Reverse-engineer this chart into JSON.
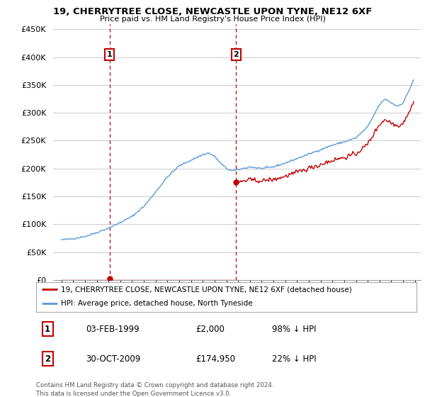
{
  "title": "19, CHERRYTREE CLOSE, NEWCASTLE UPON TYNE, NE12 6XF",
  "subtitle": "Price paid vs. HM Land Registry's House Price Index (HPI)",
  "ylim": [
    0,
    460000
  ],
  "yticks": [
    0,
    50000,
    100000,
    150000,
    200000,
    250000,
    300000,
    350000,
    400000,
    450000
  ],
  "ytick_labels": [
    "£0",
    "£50K",
    "£100K",
    "£150K",
    "£200K",
    "£250K",
    "£300K",
    "£350K",
    "£400K",
    "£450K"
  ],
  "hpi_color": "#5b9bd5",
  "price_color": "#c00000",
  "vline_color": "#c00000",
  "background_color": "#ffffff",
  "grid_color": "#cccccc",
  "legend_label_price": "19, CHERRYTREE CLOSE, NEWCASTLE UPON TYNE, NE12 6XF (detached house)",
  "legend_label_hpi": "HPI: Average price, detached house, North Tyneside",
  "sale1_date": 1999.09,
  "sale1_price": 2000,
  "sale1_label": "1",
  "sale2_date": 2009.83,
  "sale2_price": 174950,
  "sale2_label": "2",
  "footnote": "Contains HM Land Registry data © Crown copyright and database right 2024.\nThis data is licensed under the Open Government Licence v3.0.",
  "trans1_date": "03-FEB-1999",
  "trans1_price": "£2,000",
  "trans1_hpi": "98% ↓ HPI",
  "trans2_date": "30-OCT-2009",
  "trans2_price": "£174,950",
  "trans2_hpi": "22% ↓ HPI"
}
